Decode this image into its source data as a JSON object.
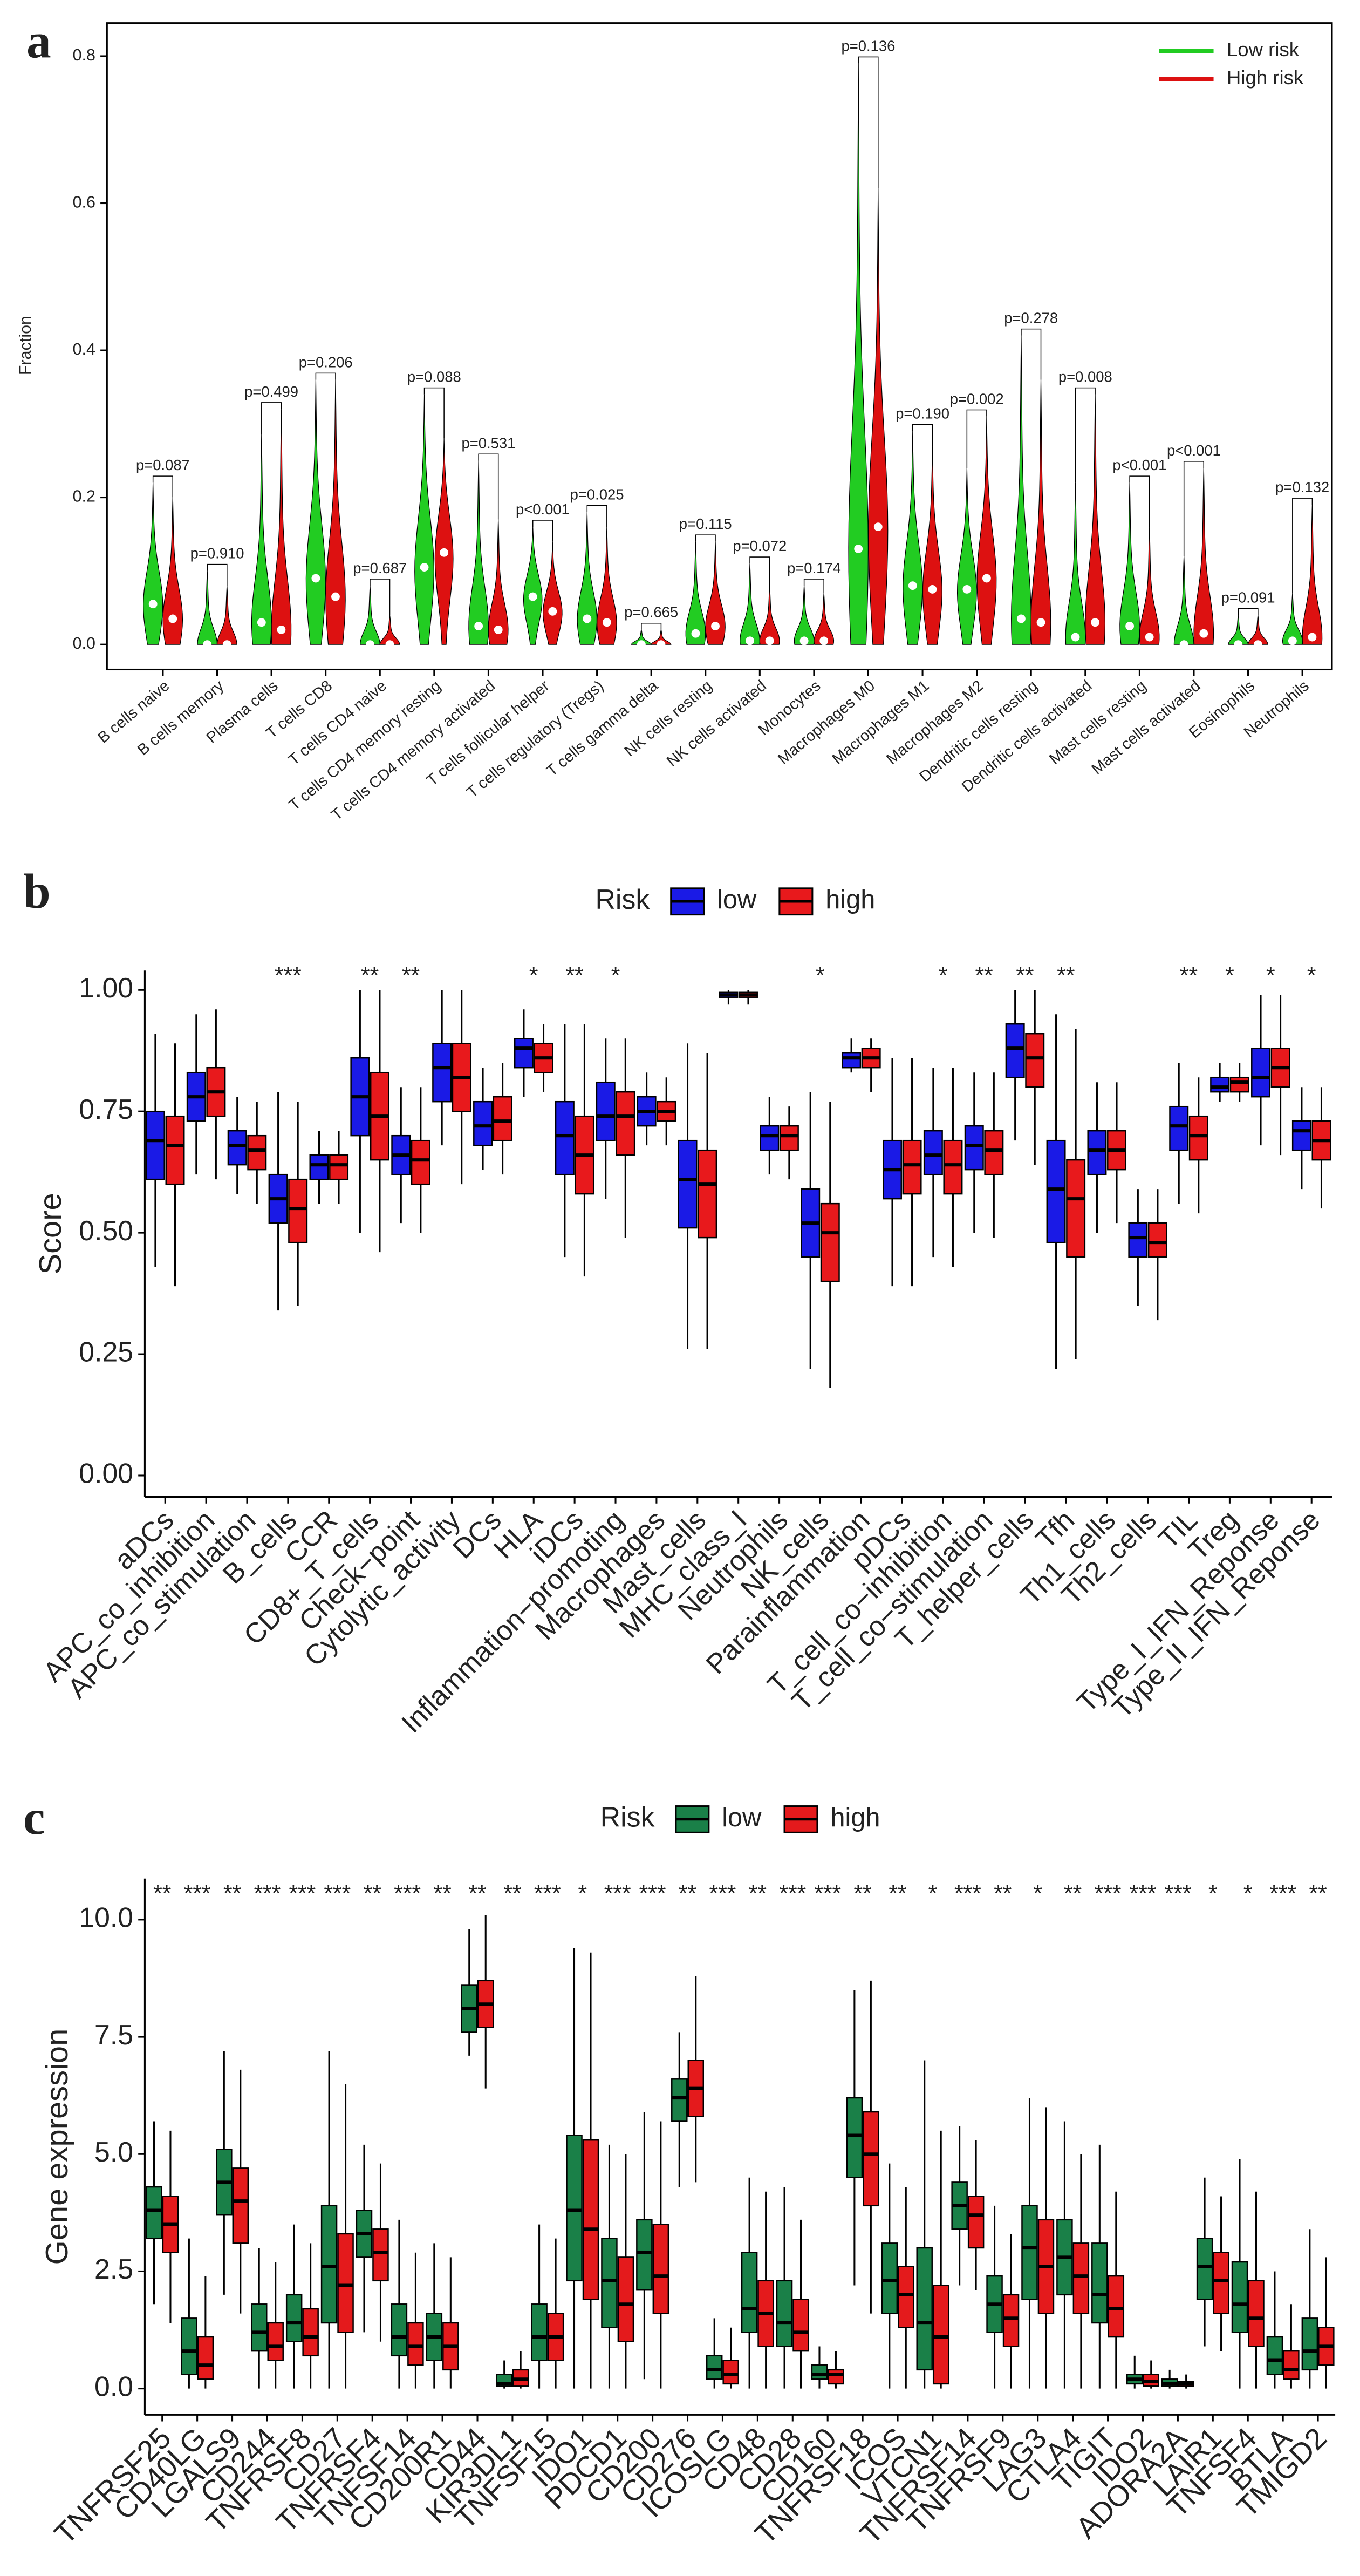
{
  "chart_data": [
    {
      "type": "violin",
      "label": "a",
      "ylabel": "Fraction",
      "categories": [
        "B cells naive",
        "B cells memory",
        "Plasma cells",
        "T cells CD8",
        "T cells CD4 naive",
        "T cells CD4 memory resting",
        "T cells CD4 memory activated",
        "T cells follicular helper",
        "T cells regulatory (Tregs)",
        "T cells gamma delta",
        "NK cells resting",
        "NK cells activated",
        "Monocytes",
        "Macrophages M0",
        "Macrophages M1",
        "Macrophages M2",
        "Dendritic cells resting",
        "Dendritic cells activated",
        "Mast cells resting",
        "Mast cells activated",
        "Eosinophils",
        "Neutrophils"
      ],
      "pvalues": [
        "p=0.087",
        "p=0.910",
        "p=0.499",
        "p=0.206",
        "p=0.687",
        "p=0.088",
        "p=0.531",
        "p<0.001",
        "p=0.025",
        "p=0.665",
        "p=0.115",
        "p=0.072",
        "p=0.174",
        "p=0.136",
        "p=0.190",
        "p=0.002",
        "p=0.278",
        "p=0.008",
        "p<0.001",
        "p<0.001",
        "p=0.091",
        "p=0.132"
      ],
      "series": [
        {
          "name": "Low risk",
          "color": "#22cc22",
          "values": [
            0.055,
            0,
            0.03,
            0.09,
            0,
            0.105,
            0.025,
            0.065,
            0.035,
            0,
            0.015,
            0.005,
            0.005,
            0.13,
            0.08,
            0.075,
            0.035,
            0.01,
            0.025,
            0,
            0,
            0.005
          ],
          "max": [
            0.22,
            0.1,
            0.285,
            0.36,
            0.08,
            0.34,
            0.25,
            0.16,
            0.18,
            0.02,
            0.14,
            0.11,
            0.08,
            0.79,
            0.29,
            0.24,
            0.42,
            0.22,
            0.22,
            0.12,
            0.04,
            0.07
          ]
        },
        {
          "name": "High risk",
          "color": "#dd1111",
          "values": [
            0.035,
            0,
            0.02,
            0.065,
            0,
            0.125,
            0.02,
            0.045,
            0.03,
            0,
            0.025,
            0.005,
            0.005,
            0.16,
            0.075,
            0.09,
            0.03,
            0.03,
            0.01,
            0.015,
            0,
            0.01
          ],
          "max": [
            0.2,
            0.08,
            0.32,
            0.36,
            0.04,
            0.28,
            0.17,
            0.14,
            0.16,
            0.02,
            0.14,
            0.08,
            0.07,
            0.62,
            0.27,
            0.31,
            0.36,
            0.34,
            0.16,
            0.24,
            0.04,
            0.19
          ]
        }
      ],
      "ylim": [
        -0.034,
        0.845
      ],
      "yticks": [
        {
          "value": 0,
          "label": "0.0"
        },
        {
          "value": 0.2,
          "label": "0.2"
        },
        {
          "value": 0.4,
          "label": "0.4"
        },
        {
          "value": 0.6,
          "label": "0.6"
        },
        {
          "value": 0.8,
          "label": "0.8"
        }
      ],
      "legend": "top-right"
    },
    {
      "type": "box",
      "label": "b",
      "ylabel": "Score",
      "legend_title": "Risk",
      "categories": [
        "aDCs",
        "APC_co_inhibition",
        "APC_co_stimulation",
        "B_cells",
        "CCR",
        "CD8+_T_cells",
        "Check−point",
        "Cytolytic_activity",
        "DCs",
        "HLA",
        "iDCs",
        "Inflammation−promoting",
        "Macrophages",
        "Mast_cells",
        "MHC_class_I",
        "Neutrophils",
        "NK_cells",
        "Parainflammation",
        "pDCs",
        "T_cell_co−inhibition",
        "T_cell_co−stimulation",
        "T_helper_cells",
        "Tfh",
        "Th1_cells",
        "Th2_cells",
        "TIL",
        "Treg",
        "Type_I_IFN_Reponse",
        "Type_II_IFN_Reponse"
      ],
      "significance": [
        null,
        null,
        null,
        "***",
        null,
        "**",
        "**",
        null,
        null,
        "*",
        "**",
        "*",
        null,
        null,
        null,
        null,
        "*",
        null,
        null,
        "*",
        "**",
        "**",
        "**",
        null,
        null,
        "**",
        "*",
        "*",
        "*"
      ],
      "series": [
        {
          "name": "low",
          "color": "#1a1ae6",
          "min": [
            0.43,
            0.62,
            0.58,
            0.34,
            0.56,
            0.5,
            0.52,
            0.68,
            0.63,
            0.78,
            0.45,
            0.57,
            0.68,
            0.26,
            0.97,
            0.62,
            0.22,
            0.83,
            0.39,
            0.45,
            0.5,
            0.69,
            0.22,
            0.5,
            0.35,
            0.56,
            0.77,
            0.68,
            0.59
          ],
          "q1": [
            0.61,
            0.73,
            0.64,
            0.52,
            0.61,
            0.7,
            0.62,
            0.77,
            0.68,
            0.84,
            0.62,
            0.69,
            0.72,
            0.51,
            0.985,
            0.67,
            0.45,
            0.84,
            0.57,
            0.62,
            0.63,
            0.82,
            0.48,
            0.62,
            0.45,
            0.67,
            0.79,
            0.78,
            0.67
          ],
          "median": [
            0.69,
            0.78,
            0.68,
            0.57,
            0.64,
            0.78,
            0.66,
            0.84,
            0.72,
            0.88,
            0.7,
            0.74,
            0.75,
            0.61,
            0.99,
            0.7,
            0.52,
            0.86,
            0.63,
            0.66,
            0.68,
            0.88,
            0.59,
            0.67,
            0.49,
            0.72,
            0.8,
            0.82,
            0.71
          ],
          "q3": [
            0.75,
            0.83,
            0.71,
            0.62,
            0.66,
            0.86,
            0.7,
            0.89,
            0.77,
            0.9,
            0.77,
            0.81,
            0.78,
            0.69,
            0.995,
            0.72,
            0.59,
            0.87,
            0.69,
            0.71,
            0.72,
            0.93,
            0.69,
            0.71,
            0.52,
            0.76,
            0.82,
            0.88,
            0.73
          ],
          "max": [
            0.91,
            0.95,
            0.78,
            0.79,
            0.71,
            1.0,
            0.8,
            1.0,
            0.84,
            0.96,
            0.93,
            0.9,
            0.83,
            0.89,
            1.0,
            0.78,
            0.79,
            0.9,
            0.86,
            0.84,
            0.83,
            1.0,
            0.95,
            0.81,
            0.59,
            0.85,
            0.85,
            0.99,
            0.8
          ]
        },
        {
          "name": "high",
          "color": "#e8191c",
          "min": [
            0.39,
            0.61,
            0.56,
            0.35,
            0.56,
            0.46,
            0.5,
            0.6,
            0.62,
            0.79,
            0.41,
            0.49,
            0.68,
            0.26,
            0.97,
            0.61,
            0.18,
            0.79,
            0.39,
            0.43,
            0.49,
            0.64,
            0.24,
            0.52,
            0.32,
            0.54,
            0.77,
            0.66,
            0.55
          ],
          "q1": [
            0.6,
            0.74,
            0.63,
            0.48,
            0.61,
            0.65,
            0.6,
            0.75,
            0.69,
            0.83,
            0.58,
            0.66,
            0.73,
            0.49,
            0.985,
            0.67,
            0.4,
            0.84,
            0.58,
            0.58,
            0.62,
            0.8,
            0.45,
            0.63,
            0.45,
            0.65,
            0.79,
            0.8,
            0.65
          ],
          "median": [
            0.68,
            0.79,
            0.67,
            0.55,
            0.64,
            0.74,
            0.65,
            0.82,
            0.73,
            0.86,
            0.66,
            0.74,
            0.75,
            0.6,
            0.99,
            0.7,
            0.5,
            0.86,
            0.64,
            0.64,
            0.67,
            0.86,
            0.57,
            0.67,
            0.48,
            0.7,
            0.81,
            0.84,
            0.69
          ],
          "q3": [
            0.74,
            0.84,
            0.7,
            0.61,
            0.66,
            0.83,
            0.69,
            0.89,
            0.78,
            0.89,
            0.74,
            0.79,
            0.77,
            0.67,
            0.995,
            0.72,
            0.56,
            0.88,
            0.69,
            0.69,
            0.71,
            0.91,
            0.65,
            0.71,
            0.52,
            0.74,
            0.82,
            0.88,
            0.73
          ],
          "max": [
            0.89,
            0.96,
            0.77,
            0.77,
            0.71,
            1.0,
            0.8,
            1.0,
            0.85,
            0.93,
            0.93,
            0.9,
            0.82,
            0.87,
            1.0,
            0.76,
            0.77,
            0.9,
            0.86,
            0.84,
            0.83,
            1.0,
            0.92,
            0.81,
            0.59,
            0.82,
            0.85,
            0.99,
            0.8
          ]
        }
      ],
      "ylim": [
        -0.044,
        1.04
      ],
      "yticks": [
        {
          "value": 0,
          "label": "0.00"
        },
        {
          "value": 0.25,
          "label": "0.25"
        },
        {
          "value": 0.5,
          "label": "0.50"
        },
        {
          "value": 0.75,
          "label": "0.75"
        },
        {
          "value": 1,
          "label": "1.00"
        }
      ]
    },
    {
      "type": "box",
      "label": "c",
      "ylabel": "Gene expression",
      "legend_title": "Risk",
      "categories": [
        "TNFRSF25",
        "CD40LG",
        "LGALS9",
        "CD244",
        "TNFRSF8",
        "CD27",
        "TNFRSF4",
        "TNFSF14",
        "CD200R1",
        "CD44",
        "KIR3DL1",
        "TNFSF15",
        "IDO1",
        "PDCD1",
        "CD200",
        "CD276",
        "ICOSLG",
        "CD48",
        "CD28",
        "CD160",
        "TNFRSF18",
        "ICOS",
        "VTCN1",
        "TNFRSF14",
        "TNFRSF9",
        "LAG3",
        "CTLA4",
        "TIGIT",
        "IDO2",
        "ADORA2A",
        "LAIR1",
        "TNFSF4",
        "BTLA",
        "TMIGD2"
      ],
      "significance": [
        "**",
        "***",
        "**",
        "***",
        "***",
        "***",
        "**",
        "***",
        "**",
        "**",
        "**",
        "***",
        "*",
        "***",
        "***",
        "**",
        "***",
        "**",
        "***",
        "***",
        "**",
        "**",
        "*",
        "***",
        "**",
        "*",
        "**",
        "***",
        "***",
        "***",
        "*",
        "*",
        "***",
        "**"
      ],
      "series": [
        {
          "name": "low",
          "color": "#1a8048",
          "min": [
            1.8,
            0,
            2.0,
            0,
            0,
            0,
            1.2,
            0,
            0,
            7.1,
            0,
            0,
            0,
            0,
            0.2,
            4.3,
            0,
            0,
            0,
            0,
            2.2,
            0,
            0,
            2.2,
            0,
            0,
            0,
            0,
            0,
            0,
            0.9,
            0,
            0,
            0
          ],
          "q1": [
            3.2,
            0.3,
            3.7,
            0.8,
            1.0,
            1.4,
            2.8,
            0.7,
            0.6,
            7.6,
            0.05,
            0.6,
            2.3,
            1.3,
            2.1,
            5.7,
            0.2,
            1.2,
            0.9,
            0.2,
            4.5,
            1.6,
            0.4,
            3.4,
            1.2,
            1.9,
            2.0,
            1.4,
            0.1,
            0.05,
            1.9,
            1.2,
            0.3,
            0.4
          ],
          "median": [
            3.8,
            0.8,
            4.4,
            1.2,
            1.4,
            2.6,
            3.3,
            1.1,
            1.1,
            8.1,
            0.1,
            1.1,
            3.8,
            2.3,
            2.9,
            6.2,
            0.4,
            1.7,
            1.4,
            0.3,
            5.4,
            2.3,
            1.4,
            3.9,
            1.8,
            3.0,
            2.8,
            2.0,
            0.2,
            0.1,
            2.6,
            1.8,
            0.6,
            0.8
          ],
          "q3": [
            4.3,
            1.5,
            5.1,
            1.8,
            2.0,
            3.9,
            3.8,
            1.8,
            1.6,
            8.6,
            0.3,
            1.8,
            5.4,
            3.2,
            3.6,
            6.6,
            0.7,
            2.9,
            2.3,
            0.5,
            6.2,
            3.1,
            3.0,
            4.4,
            2.4,
            3.9,
            3.6,
            3.1,
            0.3,
            0.2,
            3.2,
            2.7,
            1.1,
            1.5
          ],
          "max": [
            5.7,
            3.2,
            7.2,
            3.0,
            3.5,
            7.2,
            5.2,
            3.6,
            3.1,
            9.8,
            0.6,
            3.5,
            9.4,
            5.2,
            5.9,
            7.6,
            1.5,
            4.5,
            4.3,
            0.9,
            8.5,
            4.8,
            7.0,
            5.6,
            3.9,
            6.2,
            5.7,
            5.2,
            0.7,
            0.4,
            4.5,
            4.9,
            2.5,
            3.4
          ]
        },
        {
          "name": "high",
          "color": "#e41a1c",
          "min": [
            1.4,
            0,
            1.6,
            0,
            0,
            0,
            1.0,
            0,
            0,
            6.4,
            0,
            0,
            0,
            0,
            0,
            4.4,
            0,
            0,
            0,
            0,
            1.6,
            0,
            0,
            2.1,
            0,
            0,
            0,
            0,
            0,
            0,
            0.8,
            0,
            0,
            0
          ],
          "q1": [
            2.9,
            0.2,
            3.1,
            0.6,
            0.7,
            1.2,
            2.3,
            0.5,
            0.4,
            7.7,
            0.05,
            0.6,
            1.9,
            1.0,
            1.6,
            5.8,
            0.1,
            0.9,
            0.8,
            0.1,
            3.9,
            1.3,
            0.1,
            3.0,
            0.9,
            1.6,
            1.6,
            1.1,
            0.05,
            0.05,
            1.6,
            0.9,
            0.2,
            0.5
          ],
          "median": [
            3.5,
            0.5,
            4.0,
            0.9,
            1.1,
            2.2,
            2.9,
            0.9,
            0.9,
            8.2,
            0.2,
            1.1,
            3.4,
            1.8,
            2.4,
            6.4,
            0.3,
            1.6,
            1.2,
            0.3,
            5.0,
            2.0,
            1.1,
            3.7,
            1.5,
            2.6,
            2.4,
            1.7,
            0.15,
            0.1,
            2.3,
            1.5,
            0.4,
            0.9
          ],
          "q3": [
            4.1,
            1.1,
            4.7,
            1.4,
            1.7,
            3.3,
            3.4,
            1.4,
            1.4,
            8.7,
            0.4,
            1.6,
            5.3,
            2.8,
            3.5,
            7.0,
            0.6,
            2.3,
            1.9,
            0.4,
            5.9,
            2.6,
            2.2,
            4.1,
            2.0,
            3.6,
            3.1,
            2.4,
            0.3,
            0.15,
            2.9,
            2.3,
            0.8,
            1.3
          ],
          "max": [
            5.5,
            2.4,
            6.8,
            2.7,
            3.1,
            6.5,
            4.8,
            2.9,
            2.8,
            10.1,
            0.8,
            3.2,
            9.3,
            5.0,
            5.7,
            8.8,
            1.3,
            4.2,
            3.6,
            0.8,
            8.7,
            4.3,
            5.5,
            5.3,
            3.3,
            6.0,
            5.0,
            4.2,
            0.6,
            0.3,
            4.1,
            4.2,
            1.8,
            2.8
          ]
        }
      ],
      "ylim": [
        -0.56,
        10.877
      ],
      "yticks": [
        {
          "value": 0,
          "label": "0.0"
        },
        {
          "value": 2.5,
          "label": "2.5"
        },
        {
          "value": 5,
          "label": "5.0"
        },
        {
          "value": 7.5,
          "label": "7.5"
        },
        {
          "value": 10,
          "label": "10.0"
        }
      ]
    }
  ]
}
